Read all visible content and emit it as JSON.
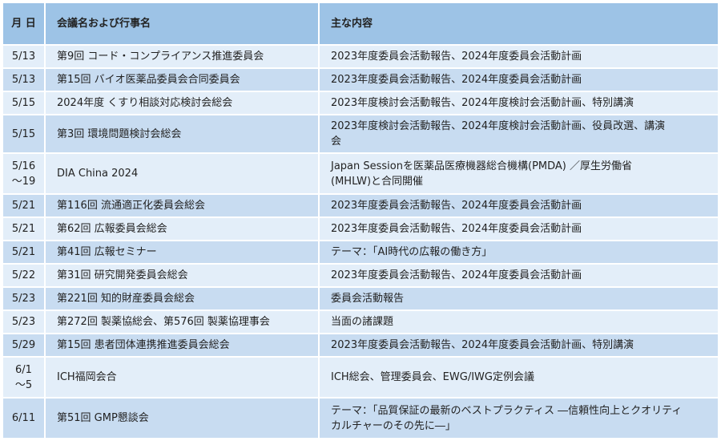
{
  "header": {
    "date": "月 日",
    "name": "会議名および行事名",
    "content": "主な内容"
  },
  "rows": [
    {
      "date": "5/13",
      "name": "第9回 コード・コンプライアンス推進委員会",
      "content": "2023年度委員会活動報告、2024年度委員会活動計画"
    },
    {
      "date": "5/13",
      "name": "第15回 バイオ医薬品委員会合同委員会",
      "content": "2023年度委員会活動報告、2024年度委員会活動計画"
    },
    {
      "date": "5/15",
      "name": "2024年度 くすり相談対応検討会総会",
      "content": "2023年度検討会活動報告、2024年度検討会活動計画、特別講演"
    },
    {
      "date": "5/15",
      "name": "第3回 環境問題検討会総会",
      "content": "2023年度検討会活動報告、2024年度検討会活動計画、役員改選、講演\n会"
    },
    {
      "date": "5/16\n～19",
      "name": "DIA China 2024",
      "content": "Japan Sessionを医薬品医療機器総合機構(PMDA) ／厚生労働省\n(MHLW)と合同開催"
    },
    {
      "date": "5/21",
      "name": "第116回 流通適正化委員会総会",
      "content": "2023年度委員会活動報告、2024年度委員会活動計画"
    },
    {
      "date": "5/21",
      "name": "第62回 広報委員会総会",
      "content": "2023年度委員会活動報告、2024年度委員会活動計画"
    },
    {
      "date": "5/21",
      "name": "第41回 広報セミナー",
      "content": "テーマ：「AI時代の広報の働き方」"
    },
    {
      "date": "5/22",
      "name": "第31回 研究開発委員会総会",
      "content": "2023年度委員会活動報告、2024年度委員会活動計画"
    },
    {
      "date": "5/23",
      "name": "第221回 知的財産委員会総会",
      "content": "委員会活動報告"
    },
    {
      "date": "5/23",
      "name": "第272回 製薬協総会、第576回 製薬協理事会",
      "content": "当面の諸課題"
    },
    {
      "date": "5/29",
      "name": "第15回 患者団体連携推進委員会総会",
      "content": "2023年度委員会活動報告、2024年度委員会活動計画、特別講演"
    },
    {
      "date": "6/1\n～5",
      "name": "ICH福岡会合",
      "content": "ICH総会、管理委員会、EWG/IWG定例会議"
    },
    {
      "date": "6/11",
      "name": "第51回 GMP懇談会",
      "content": "テーマ：「品質保証の最新のベストプラクティス ―信頼性向上とクオリティ\nカルチャーのその先に―」"
    }
  ],
  "colors": {
    "header_bg": "#9dc3e6",
    "row_light": "#e3eef9",
    "row_dark": "#c8dcf1"
  }
}
